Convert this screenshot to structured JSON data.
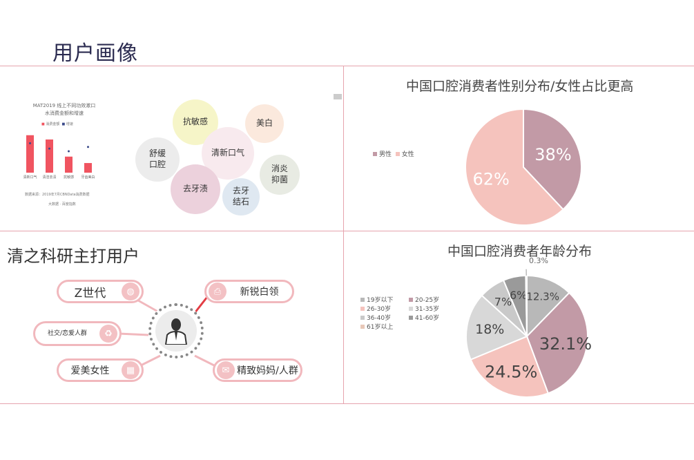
{
  "page": {
    "title": "用户画像"
  },
  "colors": {
    "accent": "#e6a3ad",
    "male": "#c29aa6",
    "female": "#f5c3bd",
    "bar": "#f05460"
  },
  "mini_bar_chart": {
    "title_line1": "MAT2019 线上不同功效漱口",
    "title_line2": "水消费金额和增速",
    "legend": [
      "消费金额",
      "增速"
    ],
    "categories": [
      "清新口气",
      "清洁去渍",
      "抗敏感",
      "牙齿美白"
    ],
    "values": [
      70,
      62,
      30,
      18
    ],
    "growth": [
      55,
      45,
      40,
      48
    ],
    "source": "数据来源：2019年7月CBNData消费数据",
    "brand": "大数据 · 百度指数"
  },
  "bubbles": {
    "items": [
      {
        "label": "抗敏感",
        "color": "#f6f5c8"
      },
      {
        "label": "美白",
        "color": "#fbe9dd"
      },
      {
        "label": "舒缓口腔",
        "color": "#ececec"
      },
      {
        "label": "清新口气",
        "color": "#f8eaee"
      },
      {
        "label": "消炎抑菌",
        "color": "#e8ebe3"
      },
      {
        "label": "去牙渍",
        "color": "#ecd1dc"
      },
      {
        "label": "去牙结石",
        "color": "#dfe8f1"
      }
    ]
  },
  "gender_chart": {
    "title": "中国口腔消费者性别分布/女性占比更高",
    "legend": [
      "男性",
      "女性"
    ],
    "chart_data": {
      "type": "pie",
      "title": "中国口腔消费者性别分布/女性占比更高",
      "categories": [
        "男性",
        "女性"
      ],
      "values": [
        38,
        62
      ],
      "labels": [
        "38%",
        "62%"
      ],
      "colors": [
        "#c29aa6",
        "#f5c3bd"
      ],
      "legend_position": "left"
    }
  },
  "users": {
    "title": "清之科研主打用户",
    "groups": [
      {
        "label": "Z世代",
        "icon": "globe-icon"
      },
      {
        "label": "新锐白领",
        "icon": "printer-icon"
      },
      {
        "label": "社交/恋爱人群",
        "icon": "recycle-icon"
      },
      {
        "label": "爱美女性",
        "icon": "calculator-icon"
      },
      {
        "label": "精致妈妈/人群",
        "icon": "mail-icon"
      }
    ]
  },
  "age_chart": {
    "title": "中国口腔消费者年龄分布",
    "legend": [
      "19岁以下",
      "20-25岁",
      "26-30岁",
      "31-35岁",
      "36-40岁",
      "41-60岁",
      "61岁以上"
    ],
    "chart_data": {
      "type": "pie",
      "title": "中国口腔消费者年龄分布",
      "categories": [
        "19岁以下",
        "20-25岁",
        "26-30岁",
        "31-35岁",
        "36-40岁",
        "41-60岁",
        "61岁以上"
      ],
      "values": [
        12.3,
        32.1,
        24.5,
        18,
        7,
        6,
        0.3
      ],
      "labels": [
        "12.3%",
        "32.1%",
        "24.5%",
        "18%",
        "7%",
        "6%",
        "0.3%"
      ],
      "colors": [
        "#b8b8b8",
        "#c29aa6",
        "#f5c3bd",
        "#d8d8d8",
        "#c9c9c9",
        "#9a9a9a",
        "#e8c8b8"
      ],
      "legend_position": "left"
    }
  }
}
